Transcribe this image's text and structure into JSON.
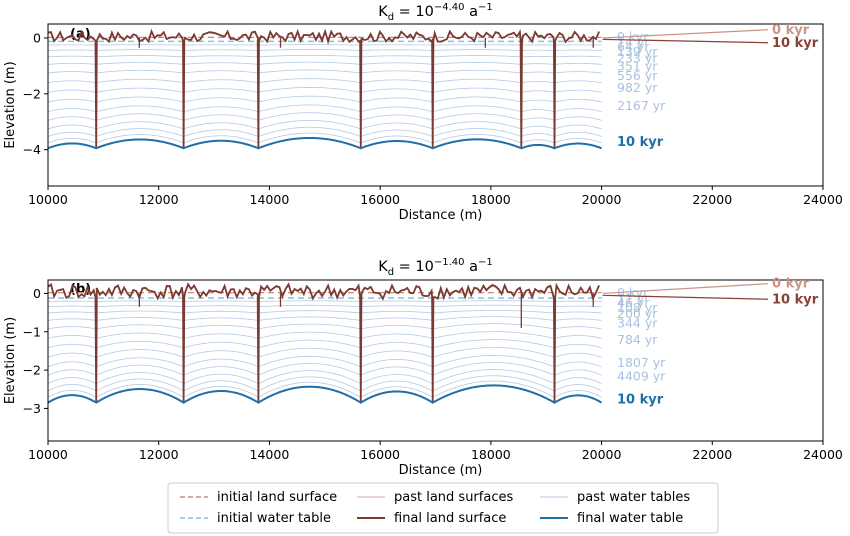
{
  "colors": {
    "past_water": "#b4c9e6",
    "final_water": "#1f6fa8",
    "initial_water": "#8cc1d6",
    "past_land": "#d8a9a0",
    "final_land": "#7a3a30",
    "initial_land": "#c38b80",
    "annot_0": "#c9958a",
    "annot_10": "#8a4236"
  },
  "chart_data": [
    {
      "panel": "(a)",
      "type": "line",
      "title": "K_d = 10^{-4.40} a^{-1}",
      "title_parts": {
        "base": "K",
        "sub": "d",
        "mid": " = 10",
        "exp": "−4.40",
        "unit": " a",
        "unit_exp": "−1"
      },
      "xlabel": "Distance (m)",
      "ylabel": "Elevation (m)",
      "xlim": [
        10000,
        24000
      ],
      "ylim": [
        -5.3,
        0.5
      ],
      "xticks": [
        "10000",
        "12000",
        "14000",
        "16000",
        "18000",
        "20000",
        "22000",
        "24000"
      ],
      "yticks": [
        "0",
        "−2",
        "−4"
      ],
      "ytick_values": [
        0,
        -2,
        -4
      ],
      "valleys_x": [
        10870,
        12450,
        13800,
        15650,
        16950,
        18550,
        19150
      ],
      "final_water_valley_y": -3.95,
      "final_water_crest_y": -3.55,
      "time_labels": [
        "0 kyr",
        "14 yr",
        "64 yr",
        "139 yr",
        "233 yr",
        "351 yr",
        "556 yr",
        "982 yr",
        "2167 yr"
      ],
      "time_label_y": [
        0.05,
        -0.15,
        -0.3,
        -0.48,
        -0.72,
        -1.0,
        -1.35,
        -1.78,
        -2.42
      ],
      "final_water_label": "10 kyr",
      "final_water_label_y": -3.7,
      "annotations": [
        {
          "text": "0 kyr",
          "kind": "initial"
        },
        {
          "text": "10 kyr",
          "kind": "final"
        }
      ]
    },
    {
      "panel": "(b)",
      "type": "line",
      "title": "K_d = 10^{-1.40} a^{-1}",
      "title_parts": {
        "base": "K",
        "sub": "d",
        "mid": " = 10",
        "exp": "−1.40",
        "unit": " a",
        "unit_exp": "−1"
      },
      "xlabel": "Distance (m)",
      "ylabel": "Elevation (m)",
      "xlim": [
        10000,
        24000
      ],
      "ylim": [
        -3.85,
        0.35
      ],
      "xticks": [
        "10000",
        "12000",
        "14000",
        "16000",
        "18000",
        "20000",
        "22000",
        "24000"
      ],
      "yticks": [
        "0",
        "−1",
        "−2",
        "−3"
      ],
      "ytick_values": [
        0,
        -1,
        -2,
        -3
      ],
      "valleys_x": [
        10870,
        12450,
        13800,
        15650,
        16950,
        19150
      ],
      "final_water_valley_y": -2.85,
      "final_water_crest_y": -2.4,
      "time_labels": [
        "0 kyr",
        "11 yr",
        "46 yr",
        "108 yr",
        "200 yr",
        "344 yr",
        "784 yr",
        "1807 yr",
        "4409 yr"
      ],
      "time_label_y": [
        0.02,
        -0.12,
        -0.24,
        -0.37,
        -0.52,
        -0.77,
        -1.2,
        -1.8,
        -2.15
      ],
      "final_water_label": "10 kyr",
      "final_water_label_y": -2.75,
      "annotations": [
        {
          "text": "0 kyr",
          "kind": "initial"
        },
        {
          "text": "10 kyr",
          "kind": "final"
        }
      ]
    }
  ],
  "legend": [
    {
      "label": "initial land surface",
      "style": "dashed",
      "color_key": "initial_land"
    },
    {
      "label": "past land surfaces",
      "style": "thin",
      "color_key": "past_land"
    },
    {
      "label": "past water tables",
      "style": "thin",
      "color_key": "past_water"
    },
    {
      "label": "initial water table",
      "style": "dashed",
      "color_key": "initial_water"
    },
    {
      "label": "final land surface",
      "style": "thick",
      "color_key": "final_land"
    },
    {
      "label": "final water table",
      "style": "thick",
      "color_key": "final_water"
    }
  ]
}
